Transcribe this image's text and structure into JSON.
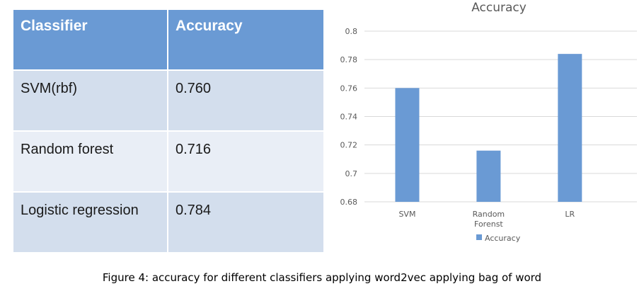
{
  "table": {
    "headers": [
      "Classifier",
      "Accuracy"
    ],
    "rows": [
      [
        "SVM(rbf)",
        "0.760"
      ],
      [
        "Random forest",
        "0.716"
      ],
      [
        "Logistic regression",
        "0.784"
      ]
    ]
  },
  "chart_data": {
    "type": "bar",
    "title": "Accuracy",
    "categories": [
      [
        "SVM"
      ],
      [
        "Random",
        "Forenst"
      ],
      [
        "LR"
      ]
    ],
    "series": [
      {
        "name": "Accuracy",
        "values": [
          0.76,
          0.716,
          0.784
        ],
        "color": "#6a9ad4"
      }
    ],
    "ylim": [
      0.68,
      0.8
    ],
    "yticks": [
      "0.68",
      "0.7",
      "0.72",
      "0.74",
      "0.76",
      "0.78",
      "0.8"
    ],
    "grid": true,
    "legend": "bottom"
  },
  "caption": "Figure 4: accuracy for different classifiers applying word2vec applying bag of word"
}
